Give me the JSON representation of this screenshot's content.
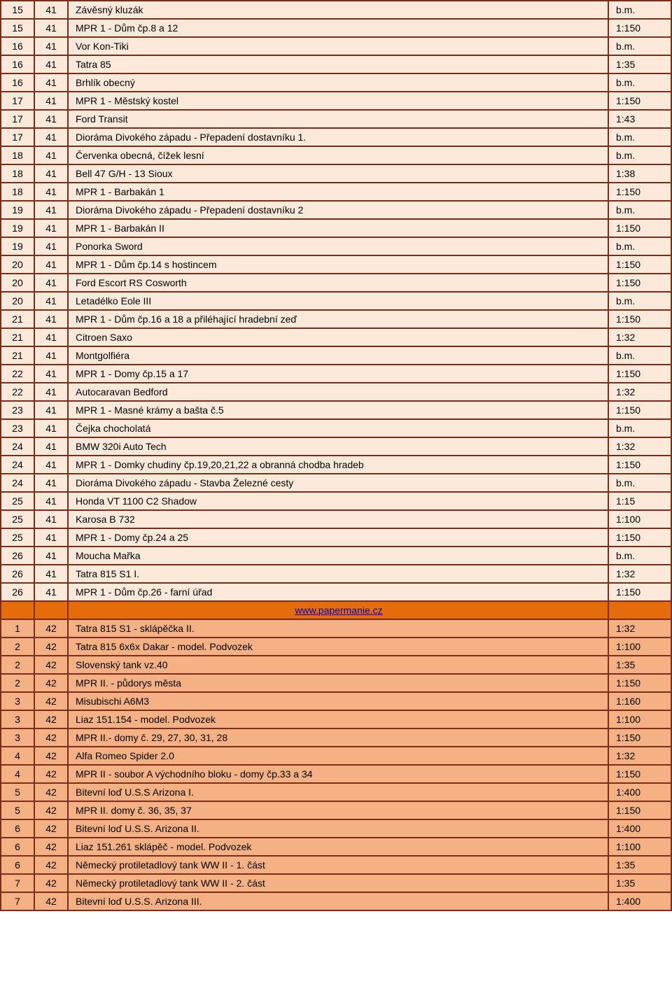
{
  "watermark": "PAPERMANIE.CZ",
  "link_text": "www.papermanie.cz",
  "colors": {
    "border": "#7a2e1a",
    "section_light": "#fde9d9",
    "section_dark": "#f5b183",
    "link_row_bg": "#e46c0a",
    "watermark": "rgba(200,80,60,0.12)"
  },
  "rows_light": [
    {
      "a": "15",
      "b": "41",
      "c": "Závěsný kluzák",
      "d": "b.m."
    },
    {
      "a": "15",
      "b": "41",
      "c": "MPR 1 - Dům čp.8 a 12",
      "d": "1:150"
    },
    {
      "a": "16",
      "b": "41",
      "c": "Vor Kon-Tiki",
      "d": "b.m."
    },
    {
      "a": "16",
      "b": "41",
      "c": "Tatra 85",
      "d": "1:35"
    },
    {
      "a": "16",
      "b": "41",
      "c": "Brhlík obecný",
      "d": "b.m."
    },
    {
      "a": "17",
      "b": "41",
      "c": "MPR 1 - Městský kostel",
      "d": "1:150"
    },
    {
      "a": "17",
      "b": "41",
      "c": "Ford Transit",
      "d": "1:43"
    },
    {
      "a": "17",
      "b": "41",
      "c": "Dioráma Divokého západu - Přepadení dostavníku 1.",
      "d": "b.m."
    },
    {
      "a": "18",
      "b": "41",
      "c": "Červenka obecná, čížek lesní",
      "d": "b.m."
    },
    {
      "a": "18",
      "b": "41",
      "c": "Bell 47 G/H - 13 Sioux",
      "d": "1:38"
    },
    {
      "a": "18",
      "b": "41",
      "c": "MPR 1 - Barbakán 1",
      "d": "1:150"
    },
    {
      "a": "19",
      "b": "41",
      "c": "Dioráma Divokého západu - Přepadení dostavníku 2",
      "d": "b.m."
    },
    {
      "a": "19",
      "b": "41",
      "c": "MPR 1 - Barbakán II",
      "d": "1:150"
    },
    {
      "a": "19",
      "b": "41",
      "c": "Ponorka Sword",
      "d": "b.m."
    },
    {
      "a": "20",
      "b": "41",
      "c": "MPR 1 - Dům čp.14 s hostincem",
      "d": "1:150"
    },
    {
      "a": "20",
      "b": "41",
      "c": "Ford Escort RS Cosworth",
      "d": "1:150"
    },
    {
      "a": "20",
      "b": "41",
      "c": "Letadélko Eole III",
      "d": "b.m."
    },
    {
      "a": "21",
      "b": "41",
      "c": "MPR 1 - Dům čp.16 a 18 a přiléhající hradební zeď",
      "d": "1:150"
    },
    {
      "a": "21",
      "b": "41",
      "c": "Citroen Saxo",
      "d": "1:32"
    },
    {
      "a": "21",
      "b": "41",
      "c": "Montgolfiéra",
      "d": "b.m."
    },
    {
      "a": "22",
      "b": "41",
      "c": "MPR 1 - Domy čp.15 a 17",
      "d": "1:150"
    },
    {
      "a": "22",
      "b": "41",
      "c": "Autocaravan Bedford",
      "d": "1:32"
    },
    {
      "a": "23",
      "b": "41",
      "c": "MPR 1 - Masné krámy a bašta č.5",
      "d": "1:150"
    },
    {
      "a": "23",
      "b": "41",
      "c": "Čejka chocholatá",
      "d": "b.m."
    },
    {
      "a": "24",
      "b": "41",
      "c": "BMW 320i Auto Tech",
      "d": "1:32"
    },
    {
      "a": "24",
      "b": "41",
      "c": "MPR 1 - Domky chudiny čp.19,20,21,22 a obranná chodba hradeb",
      "d": "1:150"
    },
    {
      "a": "24",
      "b": "41",
      "c": "Dioráma Divokého západu - Stavba Železné cesty",
      "d": "b.m."
    },
    {
      "a": "25",
      "b": "41",
      "c": "Honda VT 1100 C2 Shadow",
      "d": "1:15"
    },
    {
      "a": "25",
      "b": "41",
      "c": "Karosa B 732",
      "d": "1:100"
    },
    {
      "a": "25",
      "b": "41",
      "c": "MPR 1 - Domy čp.24 a 25",
      "d": "1:150"
    },
    {
      "a": "26",
      "b": "41",
      "c": "Moucha Mařka",
      "d": "b.m."
    },
    {
      "a": "26",
      "b": "41",
      "c": "Tatra 815 S1 I.",
      "d": "1:32"
    },
    {
      "a": "26",
      "b": "41",
      "c": "MPR 1 - Dům čp.26 - farní úřad",
      "d": "1:150"
    }
  ],
  "rows_dark": [
    {
      "a": "1",
      "b": "42",
      "c": "Tatra 815 S1 - sklápěčka  II.",
      "d": "1:32"
    },
    {
      "a": "2",
      "b": "42",
      "c": "Tatra 815 6x6x Dakar - model. Podvozek",
      "d": "1:100"
    },
    {
      "a": "2",
      "b": "42",
      "c": "Slovenský tank vz.40",
      "d": "1:35"
    },
    {
      "a": "2",
      "b": "42",
      "c": "MPR II. - půdorys města",
      "d": "1:150"
    },
    {
      "a": "3",
      "b": "42",
      "c": "Misubischi A6M3",
      "d": "1:160"
    },
    {
      "a": "3",
      "b": "42",
      "c": "Liaz 151.154 - model. Podvozek",
      "d": "1:100"
    },
    {
      "a": "3",
      "b": "42",
      "c": "MPR II.- domy č. 29, 27, 30, 31, 28",
      "d": "1:150"
    },
    {
      "a": "4",
      "b": "42",
      "c": "Alfa Romeo Spider 2.0",
      "d": "1:32"
    },
    {
      "a": "4",
      "b": "42",
      "c": "MPR II - soubor A východního bloku - domy čp.33 a 34",
      "d": "1:150"
    },
    {
      "a": "5",
      "b": "42",
      "c": "Bitevní loď U.S.S Arizona I.",
      "d": "1:400"
    },
    {
      "a": "5",
      "b": "42",
      "c": "MPR II. domy č. 36, 35, 37",
      "d": "1:150"
    },
    {
      "a": "6",
      "b": "42",
      "c": "Bitevní loď U.S.S. Arizona II.",
      "d": "1:400"
    },
    {
      "a": "6",
      "b": "42",
      "c": "Liaz 151.261 sklápěč - model. Podvozek",
      "d": "1:100"
    },
    {
      "a": "6",
      "b": "42",
      "c": "Německý protiletadlový tank WW II - 1. část",
      "d": "1:35"
    },
    {
      "a": "7",
      "b": "42",
      "c": "Německý protiletadlový tank WW II - 2. část",
      "d": "1:35"
    },
    {
      "a": "7",
      "b": "42",
      "c": "Bitevní loď U.S.S. Arizona III.",
      "d": "1:400"
    }
  ]
}
